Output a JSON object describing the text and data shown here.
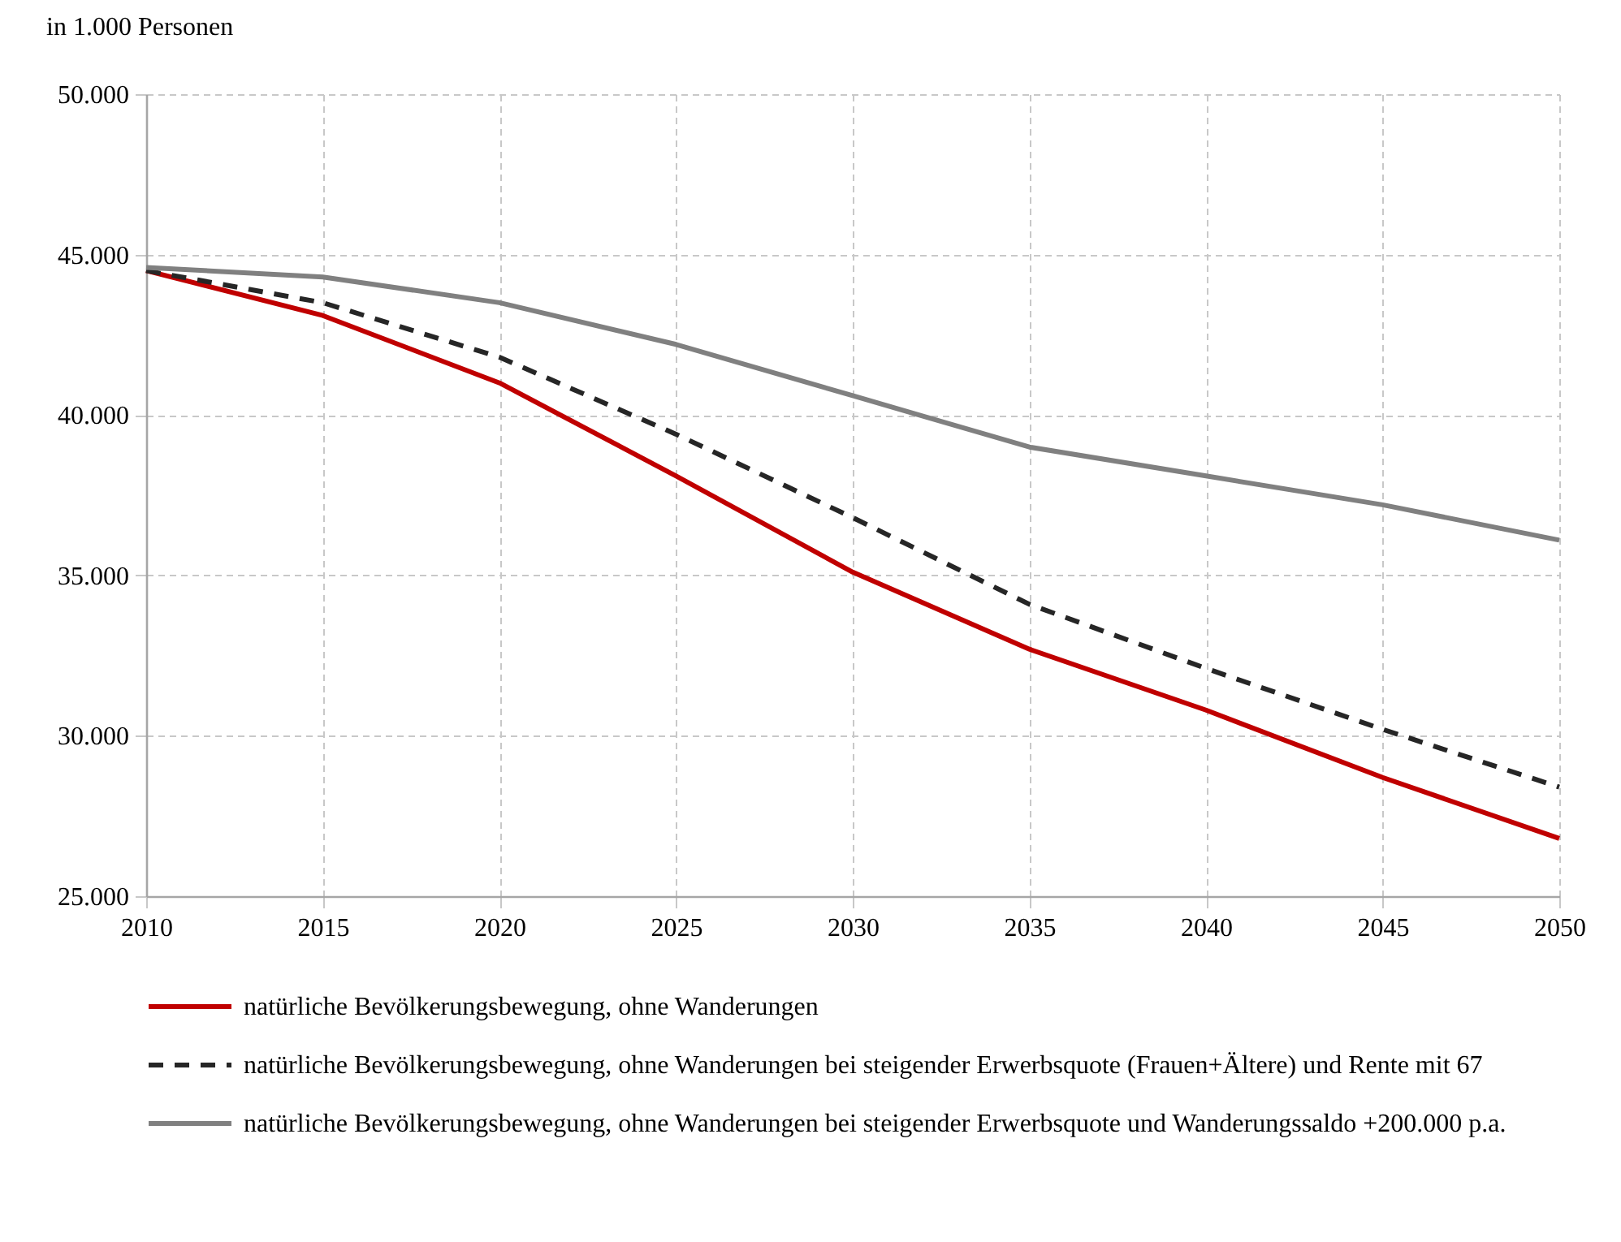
{
  "chart_data": {
    "type": "line",
    "ylabel": "in 1.000 Personen",
    "x": [
      2010,
      2015,
      2020,
      2025,
      2030,
      2035,
      2040,
      2045,
      2050
    ],
    "series": [
      {
        "name": "natürliche Bevölkerungsbewegung, ohne Wanderungen",
        "color": "#c00000",
        "values": [
          44500,
          43100,
          41000,
          38100,
          35100,
          32700,
          30800,
          28700,
          26800
        ]
      },
      {
        "name": "natürliche Bevölkerungsbewegung, ohne Wanderungen bei steigender Erwerbsquote (Frauen+Ältere) und Rente mit 67",
        "color": "#262626",
        "line_style": "dashed",
        "values": [
          44500,
          43500,
          41800,
          39400,
          36800,
          34100,
          32100,
          30200,
          28400
        ]
      },
      {
        "name": "natürliche Bevölkerungsbewegung, ohne Wanderungen bei steigender Erwerbsquote und Wanderungssaldo +200.000 p.a.",
        "color": "#808080",
        "values": [
          44600,
          44300,
          43500,
          42200,
          40600,
          39000,
          38100,
          37200,
          36100
        ]
      }
    ],
    "xlim": [
      2010,
      2050
    ],
    "xticks": [
      2010,
      2015,
      2020,
      2025,
      2030,
      2035,
      2040,
      2045,
      2050
    ],
    "ylim": [
      25000,
      50000
    ],
    "yticks": [
      {
        "value": 25000,
        "label": "25.000"
      },
      {
        "value": 30000,
        "label": "30.000"
      },
      {
        "value": 35000,
        "label": "35.000"
      },
      {
        "value": 40000,
        "label": "40.000"
      },
      {
        "value": 45000,
        "label": "45.000"
      },
      {
        "value": 50000,
        "label": "50.000"
      }
    ],
    "grid": true,
    "legend": "bottom",
    "line_style": "solid"
  }
}
